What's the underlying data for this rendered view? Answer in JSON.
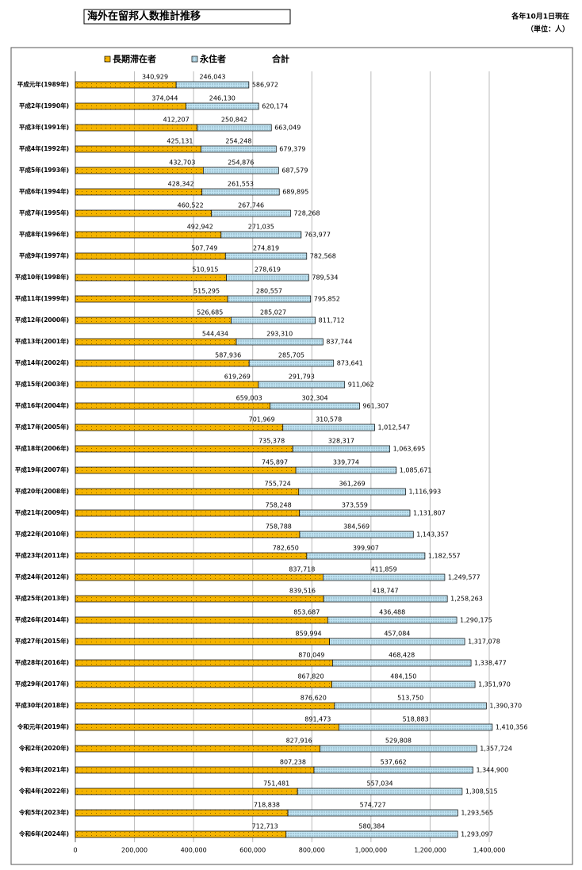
{
  "chart_data": {
    "type": "bar",
    "orientation": "horizontal",
    "stacked": true,
    "title": "海外在留邦人数推計推移",
    "annotations": [
      "各年10月1日現在",
      "（単位：人）"
    ],
    "categories": [
      "平成元年(1989年)",
      "平成2年(1990年)",
      "平成3年(1991年)",
      "平成4年(1992年)",
      "平成5年(1993年)",
      "平成6年(1994年)",
      "平成7年(1995年)",
      "平成8年(1996年)",
      "平成9年(1997年)",
      "平成10年(1998年)",
      "平成11年(1999年)",
      "平成12年(2000年)",
      "平成13年(2001年)",
      "平成14年(2002年)",
      "平成15年(2003年)",
      "平成16年(2004年)",
      "平成17年(2005年)",
      "平成18年(2006年)",
      "平成19年(2007年)",
      "平成20年(2008年)",
      "平成21年(2009年)",
      "平成22年(2010年)",
      "平成23年(2011年)",
      "平成24年(2012年)",
      "平成25年(2013年)",
      "平成26年(2014年)",
      "平成27年(2015年)",
      "平成28年(2016年)",
      "平成29年(2017年)",
      "平成30年(2018年)",
      "令和元年(2019年)",
      "令和2年(2020年)",
      "令和3年(2021年)",
      "令和4年(2022年)",
      "令和5年(2023年)",
      "令和6年(2024年)"
    ],
    "series": [
      {
        "name": "長期滞在者",
        "color": "#f5b400",
        "values": [
          340929,
          374044,
          412207,
          425131,
          432703,
          428342,
          460522,
          492942,
          507749,
          510915,
          515295,
          526685,
          544434,
          587936,
          619269,
          659003,
          701969,
          735378,
          745897,
          755724,
          758248,
          758788,
          782650,
          837718,
          839516,
          853687,
          859994,
          870049,
          867820,
          876620,
          891473,
          827916,
          807238,
          751481,
          718838,
          712713
        ],
        "value_labels": [
          "340,929",
          "374,044",
          "412,207",
          "425,131",
          "432,703",
          "428,342",
          "460,522",
          "492,942",
          "507,749",
          "510,915",
          "515,295",
          "526,685",
          "544,434",
          "587,936",
          "619,269",
          "659,003",
          "701,969",
          "735,378",
          "745,897",
          "755,724",
          "758,248",
          "758,788",
          "782,650",
          "837,718",
          "839,516",
          "853,687",
          "859,994",
          "870,049",
          "867,820",
          "876,620",
          "891,473",
          "827,916",
          "807,238",
          "751,481",
          "718,838",
          "712,713"
        ]
      },
      {
        "name": "永住者",
        "color": "#bfe3f2",
        "values": [
          246043,
          246130,
          250842,
          254248,
          254876,
          261553,
          267746,
          271035,
          274819,
          278619,
          280557,
          285027,
          293310,
          285705,
          291793,
          302304,
          310578,
          328317,
          339774,
          361269,
          373559,
          384569,
          399907,
          411859,
          418747,
          436488,
          457084,
          468428,
          484150,
          513750,
          518883,
          529808,
          537662,
          557034,
          574727,
          580384
        ],
        "value_labels": [
          "246,043",
          "246,130",
          "250,842",
          "254,248",
          "254,876",
          "261,553",
          "267,746",
          "271,035",
          "274,819",
          "278,619",
          "280,557",
          "285,027",
          "293,310",
          "285,705",
          "291,793",
          "302,304",
          "310,578",
          "328,317",
          "339,774",
          "361,269",
          "373,559",
          "384,569",
          "399,907",
          "411,859",
          "418,747",
          "436,488",
          "457,084",
          "468,428",
          "484,150",
          "513,750",
          "518,883",
          "529,808",
          "537,662",
          "557,034",
          "574,727",
          "580,384"
        ]
      }
    ],
    "totals": {
      "name": "合計",
      "values": [
        586972,
        620174,
        663049,
        679379,
        687579,
        689895,
        728268,
        763977,
        782568,
        789534,
        795852,
        811712,
        837744,
        873641,
        911062,
        961307,
        1012547,
        1063695,
        1085671,
        1116993,
        1131807,
        1143357,
        1182557,
        1249577,
        1258263,
        1290175,
        1317078,
        1338477,
        1351970,
        1390370,
        1410356,
        1357724,
        1344900,
        1308515,
        1293565,
        1293097
      ],
      "value_labels": [
        "586,972",
        "620,174",
        "663,049",
        "679,379",
        "687,579",
        "689,895",
        "728,268",
        "763,977",
        "782,568",
        "789,534",
        "795,852",
        "811,712",
        "837,744",
        "873,641",
        "911,062",
        "961,307",
        "1,012,547",
        "1,063,695",
        "1,085,671",
        "1,116,993",
        "1,131,807",
        "1,143,357",
        "1,182,557",
        "1,249,577",
        "1,258,263",
        "1,290,175",
        "1,317,078",
        "1,338,477",
        "1,351,970",
        "1,390,370",
        "1,410,356",
        "1,357,724",
        "1,344,900",
        "1,308,515",
        "1,293,565",
        "1,293,097"
      ]
    },
    "xlim": [
      0,
      1400000
    ],
    "xticks": [
      0,
      {
        "value": 200000,
        "label": "200,000"
      },
      {
        "value": 400000,
        "label": "400,000"
      },
      {
        "value": 600000,
        "label": "600,000"
      },
      {
        "value": 800000,
        "label": "800,000"
      },
      {
        "value": 1000000,
        "label": "1,000,000"
      },
      {
        "value": 1200000,
        "label": "1,200,000"
      },
      {
        "value": 1400000,
        "label": "1,400,000"
      }
    ],
    "grid": true
  }
}
